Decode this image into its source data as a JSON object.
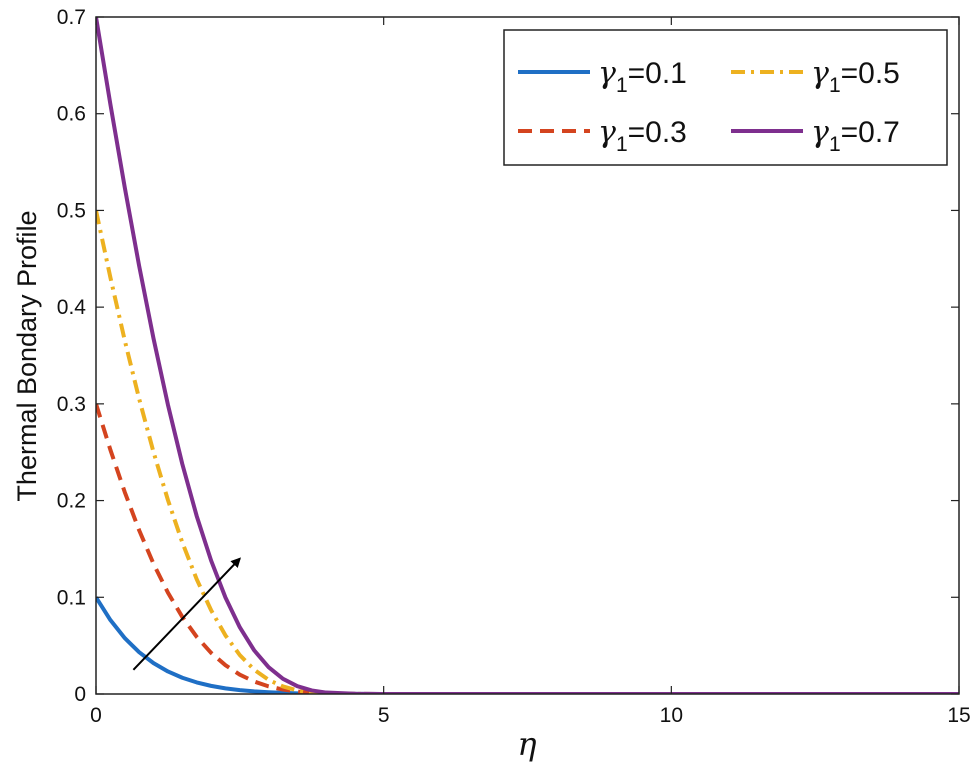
{
  "chart_data": {
    "type": "line",
    "title": "",
    "xlabel": "η",
    "ylabel": "Thermal Bondary Profile",
    "xlim": [
      0,
      15
    ],
    "ylim": [
      0,
      0.7
    ],
    "xticks": [
      0,
      5,
      10,
      15
    ],
    "xtick_labels": [
      "0",
      "5",
      "10",
      "15"
    ],
    "yticks": [
      0,
      0.1,
      0.2,
      0.3,
      0.4,
      0.5,
      0.6,
      0.7
    ],
    "ytick_labels": [
      "0",
      "0.1",
      "0.2",
      "0.3",
      "0.4",
      "0.5",
      "0.6",
      "0.7"
    ],
    "grid": false,
    "legend_position": "top-right",
    "x": [
      0,
      0.25,
      0.5,
      0.75,
      1,
      1.25,
      1.5,
      1.75,
      2,
      2.25,
      2.5,
      2.75,
      3,
      3.25,
      3.5,
      3.75,
      4,
      4.5,
      5,
      6,
      8,
      10,
      12,
      15
    ],
    "series": [
      {
        "name": "γ1=0.1",
        "legend_symbol": "γ",
        "legend_sub": "1",
        "legend_value": "=0.1",
        "color": "#1f6fc5",
        "dash": "solid",
        "values": [
          0.1,
          0.0765,
          0.0578,
          0.0432,
          0.0319,
          0.0233,
          0.0168,
          0.012,
          0.0084,
          0.0058,
          0.004,
          0.0027,
          0.0018,
          0.0012,
          0.0007,
          0.0004,
          0.0003,
          0.0001,
          0,
          0,
          0,
          0,
          0,
          0
        ]
      },
      {
        "name": "γ1=0.3",
        "legend_symbol": "γ",
        "legend_sub": "1",
        "legend_value": "=0.3",
        "color": "#d4441f",
        "dash": "dashed",
        "values": [
          0.3,
          0.2525,
          0.2087,
          0.1693,
          0.1346,
          0.1048,
          0.0797,
          0.0591,
          0.0426,
          0.0298,
          0.02,
          0.0129,
          0.0079,
          0.0046,
          0.0025,
          0.0013,
          0.0006,
          0.0001,
          0,
          0,
          0,
          0,
          0,
          0
        ]
      },
      {
        "name": "γ1=0.5",
        "legend_symbol": "γ",
        "legend_sub": "1",
        "legend_value": "=0.5",
        "color": "#edb120",
        "dash": "dashdot",
        "values": [
          0.5,
          0.4307,
          0.3655,
          0.3052,
          0.2501,
          0.2006,
          0.1567,
          0.1187,
          0.0867,
          0.0606,
          0.0402,
          0.0251,
          0.0146,
          0.0078,
          0.0037,
          0.0015,
          0.0005,
          0.0001,
          0,
          0,
          0,
          0,
          0,
          0
        ]
      },
      {
        "name": "γ1=0.7",
        "legend_symbol": "γ",
        "legend_sub": "1",
        "legend_value": "=0.7",
        "color": "#7e2f8e",
        "dash": "solid",
        "values": [
          0.7,
          0.6098,
          0.5237,
          0.4426,
          0.3675,
          0.2991,
          0.2378,
          0.1841,
          0.1381,
          0.0998,
          0.0689,
          0.0451,
          0.0277,
          0.0157,
          0.0081,
          0.0037,
          0.0015,
          0.0002,
          0,
          0,
          0,
          0,
          0,
          0
        ]
      }
    ],
    "annotations": [
      {
        "type": "arrow",
        "from": [
          0.65,
          0.025
        ],
        "to": [
          2.5,
          0.14
        ],
        "color": "#000000"
      }
    ]
  }
}
